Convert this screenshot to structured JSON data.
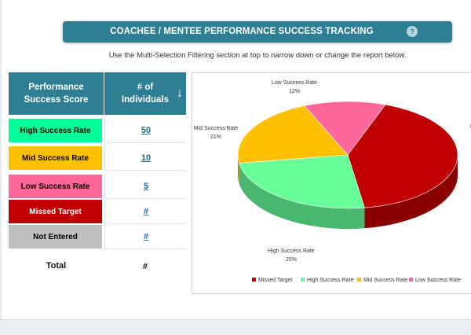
{
  "header": {
    "title": "COACHEE / MENTEE PERFORMANCE SUCCESS TRACKING",
    "help_glyph": "?"
  },
  "subtitle": "Use the Multi-Selection Filtering section at top to narrow down or change the report below.",
  "table": {
    "col_score": "Performance Success Score",
    "col_count": "# of Individuals",
    "sort_glyph": "↓",
    "rows": [
      {
        "label": "High Success Rate",
        "value": "50",
        "color": "#00ff99",
        "text_color": "#000000"
      },
      {
        "label": "Mid Success Rate",
        "value": "10",
        "color": "#ffc000",
        "text_color": "#000000"
      },
      {
        "label": "Low Success Rate",
        "value": "5",
        "color": "#ff6699",
        "text_color": "#000000"
      },
      {
        "label": "Missed Target",
        "value": "#",
        "color": "#c00000",
        "text_color": "#ffffff"
      },
      {
        "label": "Not Entered",
        "value": "#",
        "color": "#bfbfbf",
        "text_color": "#000000"
      }
    ],
    "total_label": "Total",
    "total_value": "#"
  },
  "chart_data": {
    "type": "pie",
    "slices": [
      {
        "name": "Missed Target",
        "label": "M",
        "value": 42,
        "color": "#c00000",
        "pct": ""
      },
      {
        "name": "High Success Rate",
        "label": "High Success Rate",
        "value": 25,
        "color": "#66ff99",
        "pct": "25%"
      },
      {
        "name": "Mid Success Rate",
        "label": "Mid Success Rate",
        "value": 21,
        "color": "#ffc000",
        "pct": "21%"
      },
      {
        "name": "Low Success Rate",
        "label": "Low Success Rate",
        "value": 12,
        "color": "#ff6699",
        "pct": "12%"
      }
    ],
    "legend": [
      "Missed Target",
      "High Success Rate",
      "Mid Success Rate",
      "Low Success Rate"
    ],
    "legend_position": "bottom"
  }
}
